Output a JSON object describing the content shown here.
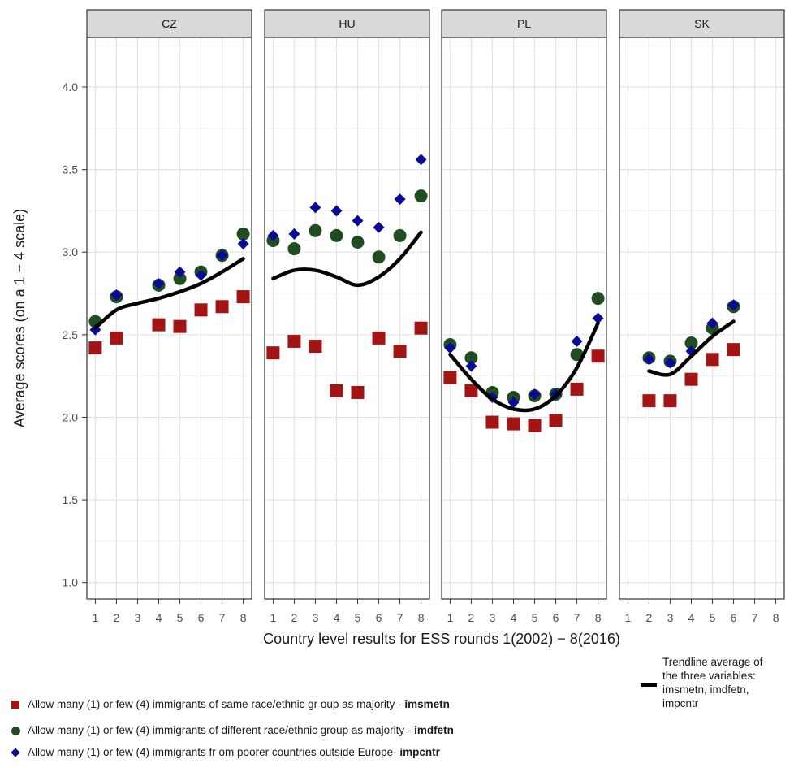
{
  "chart_data": {
    "type": "scatter",
    "panels": [
      "CZ",
      "HU",
      "PL",
      "SK"
    ],
    "ylabel": "Average scores (on a 1 − 4 scale)",
    "xlabel": "Country level results for ESS rounds 1(2002) − 8(2016)",
    "x_ticks": [
      "1",
      "2",
      "3",
      "4",
      "5",
      "6",
      "7",
      "8"
    ],
    "y_ticks": [
      "1.0",
      "1.5",
      "2.0",
      "2.5",
      "3.0",
      "3.5",
      "4.0"
    ],
    "ylim": [
      0.9,
      4.3
    ],
    "xlim": [
      0.6,
      8.4
    ],
    "grid": true,
    "legend_position": "bottom",
    "colors": {
      "imsmetn": "#a31515",
      "imdfetn": "#1f4d1f",
      "impcntr": "#0a0a99",
      "trend": "#000000"
    },
    "series": [
      {
        "key": "imsmetn",
        "marker": "square",
        "name_pre": "Allow many (1) or few (4) immigrants of same race/ethnic gr oup as majority - ",
        "name_bold": "imsmetn",
        "data": {
          "CZ": [
            [
              1,
              2.42
            ],
            [
              2,
              2.48
            ],
            [
              4,
              2.56
            ],
            [
              5,
              2.55
            ],
            [
              6,
              2.65
            ],
            [
              7,
              2.67
            ],
            [
              8,
              2.73
            ]
          ],
          "HU": [
            [
              1,
              2.39
            ],
            [
              2,
              2.46
            ],
            [
              3,
              2.43
            ],
            [
              4,
              2.16
            ],
            [
              5,
              2.15
            ],
            [
              6,
              2.48
            ],
            [
              7,
              2.4
            ],
            [
              8,
              2.54
            ]
          ],
          "PL": [
            [
              1,
              2.24
            ],
            [
              2,
              2.16
            ],
            [
              3,
              1.97
            ],
            [
              4,
              1.96
            ],
            [
              5,
              1.95
            ],
            [
              6,
              1.98
            ],
            [
              7,
              2.17
            ],
            [
              8,
              2.37
            ]
          ],
          "SK": [
            [
              2,
              2.1
            ],
            [
              3,
              2.1
            ],
            [
              4,
              2.23
            ],
            [
              5,
              2.35
            ],
            [
              6,
              2.41
            ]
          ]
        }
      },
      {
        "key": "imdfetn",
        "marker": "circle",
        "name_pre": "Allow many (1) or few (4) immigrants of different race/ethnic group as majority - ",
        "name_bold": "imdfetn",
        "data": {
          "CZ": [
            [
              1,
              2.58
            ],
            [
              2,
              2.73
            ],
            [
              4,
              2.8
            ],
            [
              5,
              2.84
            ],
            [
              6,
              2.88
            ],
            [
              7,
              2.98
            ],
            [
              8,
              3.11
            ]
          ],
          "HU": [
            [
              1,
              3.07
            ],
            [
              2,
              3.02
            ],
            [
              3,
              3.13
            ],
            [
              4,
              3.1
            ],
            [
              5,
              3.06
            ],
            [
              6,
              2.97
            ],
            [
              7,
              3.1
            ],
            [
              8,
              3.34
            ]
          ],
          "PL": [
            [
              1,
              2.44
            ],
            [
              2,
              2.36
            ],
            [
              3,
              2.15
            ],
            [
              4,
              2.12
            ],
            [
              5,
              2.13
            ],
            [
              6,
              2.14
            ],
            [
              7,
              2.38
            ],
            [
              8,
              2.72
            ]
          ],
          "SK": [
            [
              2,
              2.36
            ],
            [
              3,
              2.34
            ],
            [
              4,
              2.45
            ],
            [
              5,
              2.54
            ],
            [
              6,
              2.67
            ]
          ]
        }
      },
      {
        "key": "impcntr",
        "marker": "diamond",
        "name_pre": "Allow many (1) or few (4) immigrants fr om poorer countries outside Europe- ",
        "name_bold": "impcntr",
        "data": {
          "CZ": [
            [
              1,
              2.53
            ],
            [
              2,
              2.74
            ],
            [
              4,
              2.81
            ],
            [
              5,
              2.88
            ],
            [
              6,
              2.86
            ],
            [
              7,
              2.98
            ],
            [
              8,
              3.05
            ]
          ],
          "HU": [
            [
              1,
              3.1
            ],
            [
              2,
              3.11
            ],
            [
              3,
              3.27
            ],
            [
              4,
              3.25
            ],
            [
              5,
              3.19
            ],
            [
              6,
              3.15
            ],
            [
              7,
              3.32
            ],
            [
              8,
              3.56
            ]
          ],
          "PL": [
            [
              1,
              2.42
            ],
            [
              2,
              2.31
            ],
            [
              3,
              2.12
            ],
            [
              4,
              2.09
            ],
            [
              5,
              2.14
            ],
            [
              6,
              2.14
            ],
            [
              7,
              2.46
            ],
            [
              8,
              2.6
            ]
          ],
          "SK": [
            [
              2,
              2.35
            ],
            [
              3,
              2.33
            ],
            [
              4,
              2.4
            ],
            [
              5,
              2.57
            ],
            [
              6,
              2.68
            ]
          ]
        }
      }
    ],
    "trendline": {
      "label_lines": [
        "Trendline average of",
        "the three variables:",
        "imsmetn, imdfetn,",
        "impcntr"
      ],
      "data": {
        "CZ": [
          [
            1,
            2.54
          ],
          [
            2,
            2.65
          ],
          [
            3,
            2.69
          ],
          [
            4,
            2.72
          ],
          [
            5,
            2.76
          ],
          [
            6,
            2.81
          ],
          [
            7,
            2.88
          ],
          [
            8,
            2.96
          ]
        ],
        "HU": [
          [
            1,
            2.84
          ],
          [
            2,
            2.89
          ],
          [
            3,
            2.89
          ],
          [
            4,
            2.85
          ],
          [
            5,
            2.8
          ],
          [
            6,
            2.85
          ],
          [
            7,
            2.96
          ],
          [
            8,
            3.12
          ]
        ],
        "PL": [
          [
            1,
            2.38
          ],
          [
            2,
            2.23
          ],
          [
            3,
            2.11
          ],
          [
            4,
            2.05
          ],
          [
            5,
            2.05
          ],
          [
            6,
            2.13
          ],
          [
            7,
            2.3
          ],
          [
            8,
            2.57
          ]
        ],
        "SK": [
          [
            2,
            2.28
          ],
          [
            3,
            2.26
          ],
          [
            4,
            2.37
          ],
          [
            5,
            2.49
          ],
          [
            6,
            2.58
          ]
        ]
      }
    }
  }
}
